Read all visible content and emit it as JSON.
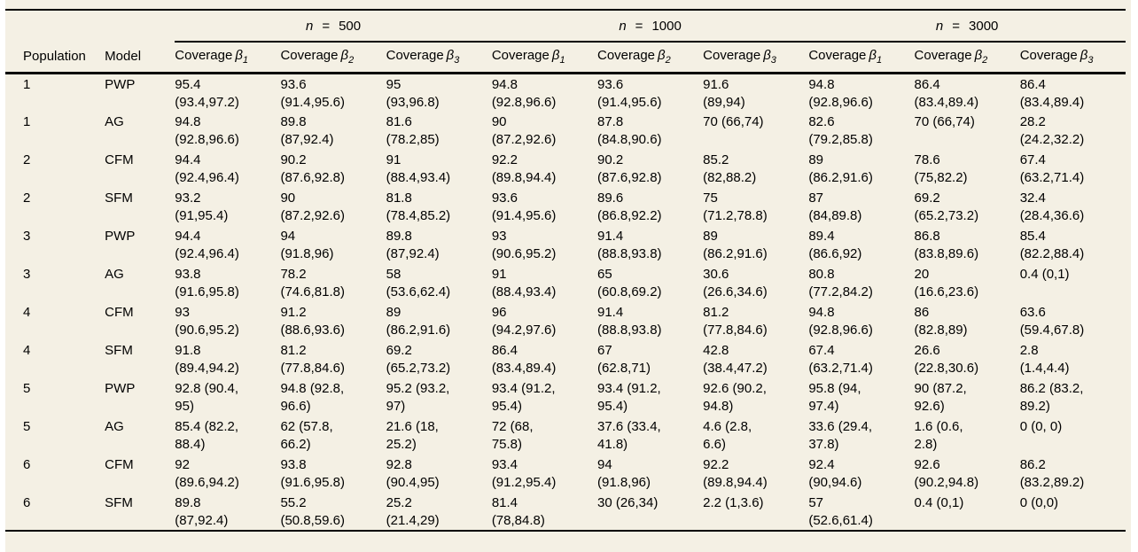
{
  "colors": {
    "background": "#f4f0e4",
    "text": "#000000",
    "rule": "#000000"
  },
  "group_headers": [
    {
      "var": "n",
      "eq": "=",
      "value": "500"
    },
    {
      "var": "n",
      "eq": "=",
      "value": "1000"
    },
    {
      "var": "n",
      "eq": "=",
      "value": "3000"
    }
  ],
  "column_headers": {
    "population": "Population",
    "model": "Model",
    "coverage_label": "Coverage",
    "beta_symbol": "β",
    "subscripts": [
      "1",
      "2",
      "3"
    ]
  },
  "rows": [
    {
      "population": "1",
      "model": "PWP",
      "cells": [
        [
          "95.4",
          "(93.4,97.2)"
        ],
        [
          "93.6",
          "(91.4,95.6)"
        ],
        [
          "95",
          "(93,96.8)"
        ],
        [
          "94.8",
          "(92.8,96.6)"
        ],
        [
          "93.6",
          "(91.4,95.6)"
        ],
        [
          "91.6",
          "(89,94)"
        ],
        [
          "94.8",
          "(92.8,96.6)"
        ],
        [
          "86.4",
          "(83.4,89.4)"
        ],
        [
          "86.4",
          "(83.4,89.4)"
        ]
      ]
    },
    {
      "population": "1",
      "model": "AG",
      "cells": [
        [
          "94.8",
          "(92.8,96.6)"
        ],
        [
          "89.8",
          "(87,92.4)"
        ],
        [
          "81.6",
          "(78.2,85)"
        ],
        [
          "90",
          "(87.2,92.6)"
        ],
        [
          "87.8",
          "(84.8,90.6)"
        ],
        [
          "70 (66,74)"
        ],
        [
          "82.6",
          "(79.2,85.8)"
        ],
        [
          "70 (66,74)"
        ],
        [
          "28.2",
          "(24.2,32.2)"
        ]
      ]
    },
    {
      "population": "2",
      "model": "CFM",
      "cells": [
        [
          "94.4",
          "(92.4,96.4)"
        ],
        [
          "90.2",
          "(87.6,92.8)"
        ],
        [
          "91",
          "(88.4,93.4)"
        ],
        [
          "92.2",
          "(89.8,94.4)"
        ],
        [
          "90.2",
          "(87.6,92.8)"
        ],
        [
          "85.2",
          "(82,88.2)"
        ],
        [
          "89",
          "(86.2,91.6)"
        ],
        [
          "78.6",
          "(75,82.2)"
        ],
        [
          "67.4",
          "(63.2,71.4)"
        ]
      ]
    },
    {
      "population": "2",
      "model": "SFM",
      "cells": [
        [
          "93.2",
          "(91,95.4)"
        ],
        [
          "90",
          "(87.2,92.6)"
        ],
        [
          "81.8",
          "(78.4,85.2)"
        ],
        [
          "93.6",
          "(91.4,95.6)"
        ],
        [
          "89.6",
          "(86.8,92.2)"
        ],
        [
          "75",
          "(71.2,78.8)"
        ],
        [
          "87",
          "(84,89.8)"
        ],
        [
          "69.2",
          "(65.2,73.2)"
        ],
        [
          "32.4",
          "(28.4,36.6)"
        ]
      ]
    },
    {
      "population": "3",
      "model": "PWP",
      "cells": [
        [
          "94.4",
          "(92.4,96.4)"
        ],
        [
          "94",
          "(91.8,96)"
        ],
        [
          "89.8",
          "(87,92.4)"
        ],
        [
          "93",
          "(90.6,95.2)"
        ],
        [
          "91.4",
          "(88.8,93.8)"
        ],
        [
          "89",
          "(86.2,91.6)"
        ],
        [
          "89.4",
          "(86.6,92)"
        ],
        [
          "86.8",
          "(83.8,89.6)"
        ],
        [
          "85.4",
          "(82.2,88.4)"
        ]
      ]
    },
    {
      "population": "3",
      "model": "AG",
      "cells": [
        [
          "93.8",
          "(91.6,95.8)"
        ],
        [
          "78.2",
          "(74.6,81.8)"
        ],
        [
          "58",
          "(53.6,62.4)"
        ],
        [
          "91",
          "(88.4,93.4)"
        ],
        [
          "65",
          "(60.8,69.2)"
        ],
        [
          "30.6",
          "(26.6,34.6)"
        ],
        [
          "80.8",
          "(77.2,84.2)"
        ],
        [
          "20",
          "(16.6,23.6)"
        ],
        [
          "0.4 (0,1)"
        ]
      ]
    },
    {
      "population": "4",
      "model": "CFM",
      "cells": [
        [
          "93",
          "(90.6,95.2)"
        ],
        [
          "91.2",
          "(88.6,93.6)"
        ],
        [
          "89",
          "(86.2,91.6)"
        ],
        [
          "96",
          "(94.2,97.6)"
        ],
        [
          "91.4",
          "(88.8,93.8)"
        ],
        [
          "81.2",
          "(77.8,84.6)"
        ],
        [
          "94.8",
          "(92.8,96.6)"
        ],
        [
          "86",
          "(82.8,89)"
        ],
        [
          "63.6",
          "(59.4,67.8)"
        ]
      ]
    },
    {
      "population": "4",
      "model": "SFM",
      "cells": [
        [
          "91.8",
          "(89.4,94.2)"
        ],
        [
          "81.2",
          "(77.8,84.6)"
        ],
        [
          "69.2",
          "(65.2,73.2)"
        ],
        [
          "86.4",
          "(83.4,89.4)"
        ],
        [
          "67",
          "(62.8,71)"
        ],
        [
          "42.8",
          "(38.4,47.2)"
        ],
        [
          "67.4",
          "(63.2,71.4)"
        ],
        [
          "26.6",
          "(22.8,30.6)"
        ],
        [
          "2.8",
          "(1.4,4.4)"
        ]
      ]
    },
    {
      "population": "5",
      "model": "PWP",
      "cells": [
        [
          "92.8 (90.4,",
          "95)"
        ],
        [
          "94.8 (92.8,",
          "96.6)"
        ],
        [
          "95.2 (93.2,",
          "97)"
        ],
        [
          "93.4 (91.2,",
          "95.4)"
        ],
        [
          "93.4 (91.2,",
          "95.4)"
        ],
        [
          "92.6 (90.2,",
          "94.8)"
        ],
        [
          "95.8 (94,",
          "97.4)"
        ],
        [
          "90 (87.2,",
          "92.6)"
        ],
        [
          "86.2 (83.2,",
          "89.2)"
        ]
      ]
    },
    {
      "population": "5",
      "model": "AG",
      "cells": [
        [
          "85.4 (82.2,",
          "88.4)"
        ],
        [
          "62 (57.8,",
          "66.2)"
        ],
        [
          "21.6 (18,",
          "25.2)"
        ],
        [
          "72 (68,",
          "75.8)"
        ],
        [
          "37.6 (33.4,",
          "41.8)"
        ],
        [
          "4.6 (2.8,",
          "6.6)"
        ],
        [
          "33.6 (29.4,",
          "37.8)"
        ],
        [
          "1.6 (0.6,",
          "2.8)"
        ],
        [
          "0 (0, 0)"
        ]
      ]
    },
    {
      "population": "6",
      "model": "CFM",
      "cells": [
        [
          "92",
          "(89.6,94.2)"
        ],
        [
          "93.8",
          "(91.6,95.8)"
        ],
        [
          "92.8",
          "(90.4,95)"
        ],
        [
          "93.4",
          "(91.2,95.4)"
        ],
        [
          "94",
          "(91.8,96)"
        ],
        [
          "92.2",
          "(89.8,94.4)"
        ],
        [
          "92.4",
          "(90,94.6)"
        ],
        [
          "92.6",
          "(90.2,94.8)"
        ],
        [
          "86.2",
          "(83.2,89.2)"
        ]
      ]
    },
    {
      "population": "6",
      "model": "SFM",
      "cells": [
        [
          "89.8",
          "(87,92.4)"
        ],
        [
          "55.2",
          "(50.8,59.6)"
        ],
        [
          "25.2",
          "(21.4,29)"
        ],
        [
          "81.4",
          "(78,84.8)"
        ],
        [
          "30 (26,34)"
        ],
        [
          "2.2 (1,3.6)"
        ],
        [
          "57",
          "(52.6,61.4)"
        ],
        [
          "0.4 (0,1)"
        ],
        [
          "0 (0,0)"
        ]
      ]
    }
  ]
}
